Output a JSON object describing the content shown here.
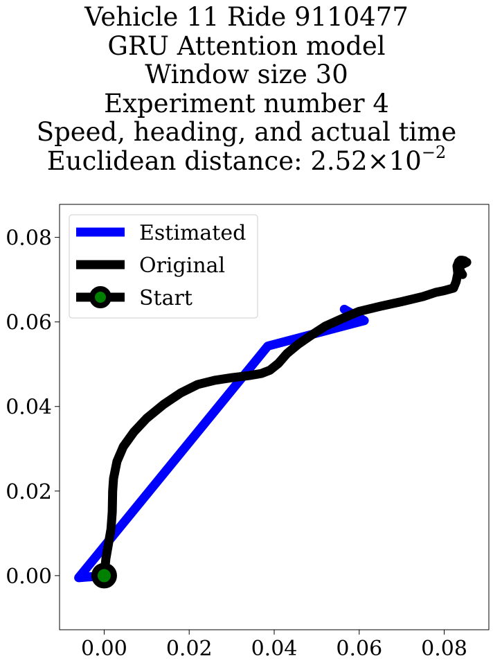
{
  "title_lines": [
    "Vehicle 11 Ride 9110477",
    "GRU Attention model",
    "Window size 30",
    "Experiment number 4",
    "Speed, heading, and actual time"
  ],
  "distance_line": {
    "prefix": "Euclidean distance: 2.52",
    "times": "×",
    "base": "10",
    "exponent": "−2"
  },
  "chart_data": {
    "type": "line",
    "xlim": [
      -0.0105,
      0.0905
    ],
    "ylim": [
      -0.0128,
      0.0878
    ],
    "xticks": [
      0.0,
      0.02,
      0.04,
      0.06,
      0.08
    ],
    "yticks": [
      0.0,
      0.02,
      0.04,
      0.06,
      0.08
    ],
    "xtick_labels": [
      "0.00",
      "0.02",
      "0.04",
      "0.06",
      "0.08"
    ],
    "ytick_labels": [
      "0.00",
      "0.02",
      "0.04",
      "0.06",
      "0.08"
    ],
    "grid": false,
    "legend_position": "upper-left",
    "series": [
      {
        "name": "Estimated",
        "color": "#0000ff",
        "x": [
          0.0565,
          0.0612,
          0.0385,
          -0.006,
          0.0
        ],
        "y": [
          0.063,
          0.0603,
          0.0543,
          -0.0005,
          0.0
        ]
      },
      {
        "name": "Original",
        "color": "#000000",
        "x": [
          0.0,
          0.0004,
          0.001,
          0.0016,
          0.0019,
          0.002,
          0.0022,
          0.003,
          0.0045,
          0.007,
          0.01,
          0.014,
          0.018,
          0.022,
          0.026,
          0.03,
          0.034,
          0.037,
          0.039,
          0.041,
          0.043,
          0.0455,
          0.0485,
          0.052,
          0.056,
          0.06,
          0.065,
          0.07,
          0.075,
          0.078,
          0.08,
          0.0822,
          0.0828,
          0.0832,
          0.083,
          0.0834,
          0.0838,
          0.0842,
          0.0847,
          0.0851,
          0.0853,
          0.0847,
          0.084,
          0.0836,
          0.0839,
          0.0843
        ],
        "y": [
          0.0,
          0.004,
          0.0075,
          0.011,
          0.015,
          0.02,
          0.023,
          0.027,
          0.0305,
          0.034,
          0.0372,
          0.0405,
          0.0432,
          0.0452,
          0.0462,
          0.0468,
          0.0473,
          0.0478,
          0.0486,
          0.0502,
          0.0525,
          0.0546,
          0.0567,
          0.059,
          0.0608,
          0.0625,
          0.0637,
          0.0648,
          0.066,
          0.067,
          0.0674,
          0.068,
          0.0695,
          0.0715,
          0.0732,
          0.0742,
          0.0746,
          0.0746,
          0.0745,
          0.0742,
          0.0741,
          0.0738,
          0.0735,
          0.0727,
          0.0718,
          0.0712
        ]
      }
    ],
    "start_point": {
      "name": "Start",
      "x": 0.0,
      "y": 0.0,
      "marker_color": "#008000",
      "edge_color": "#000000"
    }
  }
}
